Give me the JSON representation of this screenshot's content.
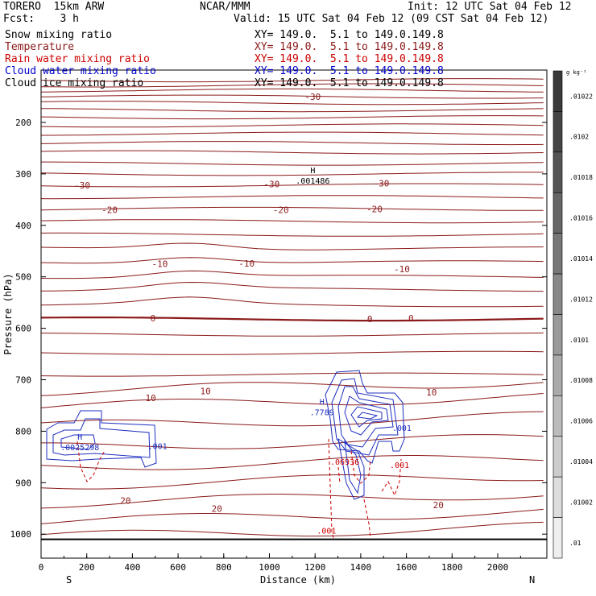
{
  "header": {
    "model": "TORERO  15km ARW",
    "center": "NCAR/MMM",
    "init": "Init: 12 UTC Sat 04 Feb 12",
    "fcst": "Fcst:    3 h",
    "valid": "Valid: 15 UTC Sat 04 Feb 12 (09 CST Sat 04 Feb 12)"
  },
  "legend": [
    {
      "label": "Snow mixing ratio",
      "xy": "XY= 149.0.  5.1 to 149.0.149.8",
      "color": "#000000"
    },
    {
      "label": "Temperature",
      "xy": "XY= 149.0.  5.1 to 149.0.149.8",
      "color": "#8b1a1a"
    },
    {
      "label": "Rain water mixing ratio",
      "xy": "XY= 149.0.  5.1 to 149.0.149.8",
      "color": "#cc0000"
    },
    {
      "label": "Cloud water mixing ratio",
      "xy": "XY= 149.0.  5.1 to 149.0.149.8",
      "color": "#0000cc"
    },
    {
      "label": "Cloud ice mixing ratio",
      "xy": "XY= 149.0.  5.1 to 149.0.149.8",
      "color": "#000000"
    }
  ],
  "chart_data": {
    "type": "line",
    "ylabel": "Pressure (hPa)",
    "xlabel": "Distance (km)",
    "x_ticks": [
      0,
      200,
      400,
      600,
      800,
      1000,
      1200,
      1400,
      1600,
      1800,
      2000
    ],
    "y_ticks": [
      200,
      300,
      400,
      500,
      600,
      700,
      800,
      900,
      1000
    ],
    "x_end_labels": {
      "left": "S",
      "right": "N"
    },
    "xlim": [
      0,
      2200
    ],
    "ylim": [
      1050,
      100
    ],
    "colorbar": {
      "unit": "g kg⁻¹",
      "labels": [
        ".01022",
        ".0102",
        ".01018",
        ".01016",
        ".01014",
        ".01012",
        ".0101",
        ".01008",
        ".01006",
        ".01004",
        ".01002",
        ".01"
      ]
    },
    "temperature_contour_labels": [
      {
        "text": "-30",
        "x": 180,
        "p": 322
      },
      {
        "text": "-30",
        "x": 1010,
        "p": 320
      },
      {
        "text": "-30",
        "x": 1490,
        "p": 318
      },
      {
        "text": "-20",
        "x": 300,
        "p": 370
      },
      {
        "text": "-20",
        "x": 1050,
        "p": 370
      },
      {
        "text": "-20",
        "x": 1460,
        "p": 368
      },
      {
        "text": "-10",
        "x": 520,
        "p": 475
      },
      {
        "text": "-10",
        "x": 900,
        "p": 474
      },
      {
        "text": "-10",
        "x": 1580,
        "p": 485
      },
      {
        "text": "0",
        "x": 490,
        "p": 580
      },
      {
        "text": "0",
        "x": 1440,
        "p": 582
      },
      {
        "text": "0",
        "x": 1620,
        "p": 580
      },
      {
        "text": "10",
        "x": 480,
        "p": 735
      },
      {
        "text": "10",
        "x": 720,
        "p": 722
      },
      {
        "text": "10",
        "x": 1710,
        "p": 724
      },
      {
        "text": "20",
        "x": 370,
        "p": 935
      },
      {
        "text": "20",
        "x": 770,
        "p": 950
      },
      {
        "text": "20",
        "x": 1740,
        "p": 943
      },
      {
        "text": "-30",
        "x": 1190,
        "p": 150
      }
    ],
    "extrema": [
      {
        "label": "H",
        "value": ".001486",
        "x": 1190,
        "p": 305,
        "field": "snow"
      },
      {
        "label": "H",
        "value": ".7789",
        "x": 1230,
        "p": 755,
        "field": "cloud water"
      },
      {
        "label": "H",
        "value": ".0025298",
        "x": 170,
        "p": 823,
        "field": "cloud water"
      }
    ],
    "field_labels": [
      {
        "text": ".001",
        "x": 1580,
        "p": 793,
        "field": "cloud water"
      },
      {
        "text": ".001",
        "x": 510,
        "p": 828,
        "field": "cloud water"
      },
      {
        "text": ".06936",
        "x": 1330,
        "p": 859,
        "field": "rain"
      },
      {
        "text": ".001",
        "x": 1570,
        "p": 865,
        "field": "rain"
      },
      {
        "text": ".001",
        "x": 1250,
        "p": 993,
        "field": "rain"
      }
    ]
  }
}
